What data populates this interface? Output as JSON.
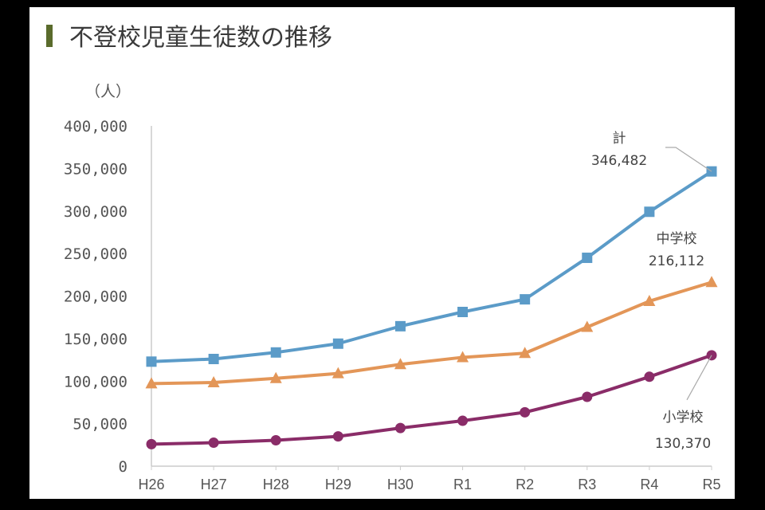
{
  "title": "不登校児童生徒数の推移",
  "chart_data": {
    "type": "line",
    "title": "不登校児童生徒数の推移",
    "ylabel": "（人）",
    "xlabel": "",
    "ylim": [
      0,
      400000
    ],
    "yticks": [
      0,
      50000,
      100000,
      150000,
      200000,
      250000,
      300000,
      350000,
      400000
    ],
    "ytick_labels": [
      "0",
      "50,000",
      "100,000",
      "150,000",
      "200,000",
      "250,000",
      "300,000",
      "350,000",
      "400,000"
    ],
    "categories": [
      "H26",
      "H27",
      "H28",
      "H29",
      "H30",
      "R1",
      "R2",
      "R3",
      "R4",
      "R5"
    ],
    "grid": false,
    "series": [
      {
        "name": "計",
        "color": "#5b9bc8",
        "marker": "square",
        "values": [
          122897,
          125991,
          133683,
          144031,
          164528,
          181272,
          196127,
          244940,
          299048,
          346482
        ],
        "end_label": "346,482"
      },
      {
        "name": "中学校",
        "color": "#e39658",
        "marker": "triangle",
        "values": [
          97033,
          98408,
          103235,
          108999,
          119687,
          127922,
          132777,
          163442,
          193936,
          216112
        ],
        "end_label": "216,112"
      },
      {
        "name": "小学校",
        "color": "#8a2c68",
        "marker": "circle",
        "values": [
          25864,
          27583,
          30448,
          35032,
          44841,
          53350,
          63350,
          81498,
          105112,
          130370
        ],
        "end_label": "130,370"
      }
    ]
  }
}
